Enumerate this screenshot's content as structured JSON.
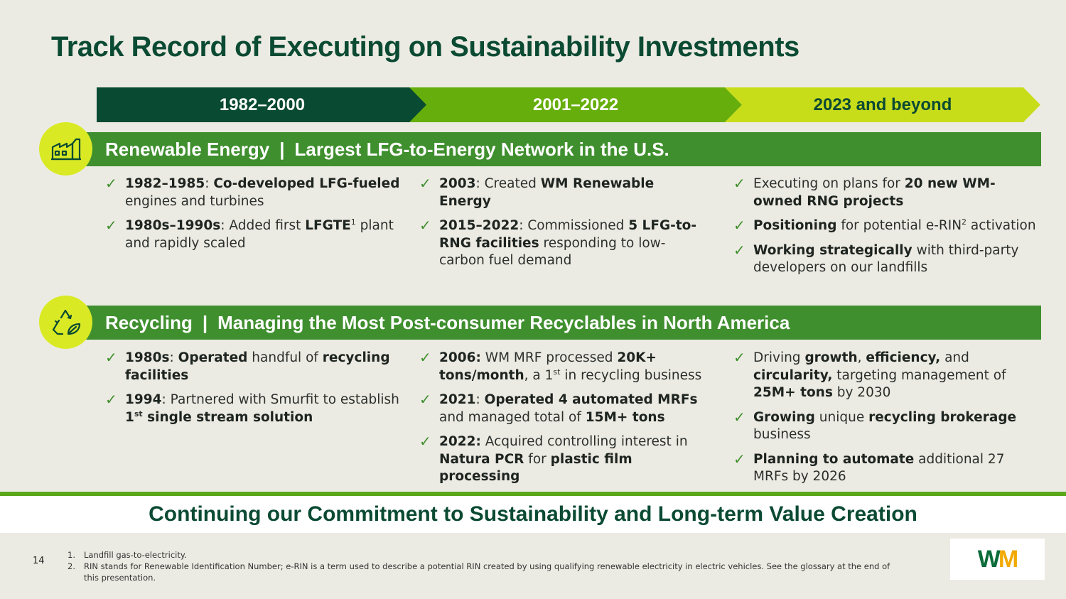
{
  "title": "Track Record of Executing on Sustainability Investments",
  "timeline": [
    "1982–2000",
    "2001–2022",
    "2023 and beyond"
  ],
  "sections": [
    {
      "icon": "factory-icon",
      "label": "Renewable Energy",
      "separator": "|",
      "heading": "Largest LFG-to-Energy Network in the U.S."
    },
    {
      "icon": "recycle-icon",
      "label": "Recycling",
      "separator": "|",
      "heading": "Managing the Most Post-consumer Recyclables in North America"
    }
  ],
  "renewable": {
    "col1": {
      "i1": {
        "b1": "1982–1985",
        "t1": ": ",
        "b2": "Co-developed LFG-fueled",
        "t2": " engines and turbines"
      },
      "i2": {
        "b1": "1980s–1990s",
        "t1": ": Added first ",
        "b2": "LFGTE",
        "sup": "1",
        "t2": " plant and rapidly scaled"
      }
    },
    "col2": {
      "i1": {
        "b1": "2003",
        "t1": ": Created ",
        "b2": "WM Renewable Energy"
      },
      "i2": {
        "b1": "2015–2022",
        "t1": ": Commissioned ",
        "b2": "5 LFG-to-RNG facilities",
        "t2": " responding to low-carbon fuel demand"
      }
    },
    "col3": {
      "i1": {
        "t1": "Executing on plans for ",
        "b1": "20 new WM-owned RNG projects"
      },
      "i2": {
        "b1": "Positioning",
        "t1": " for potential e-RIN",
        "sup": "2",
        "t2": " activation"
      },
      "i3": {
        "b1": "Working strategically",
        "t1": " with third-party developers on our landfills"
      }
    }
  },
  "recycling": {
    "col1": {
      "i1": {
        "b1": "1980s",
        "t1": ": ",
        "b2": "Operated",
        "t2": " handful of ",
        "b3": "recycling facilities"
      },
      "i2": {
        "b1": "1994",
        "t1": ": Partnered with Smurfit to establish ",
        "b2": "1",
        "sup": "st",
        "b3": " single stream solution"
      }
    },
    "col2": {
      "i1": {
        "b1": "2006:",
        "t1": " WM MRF processed ",
        "b2": "20K+ tons/month",
        "t2": ", a 1",
        "sup": "st",
        "t3": " in recycling business"
      },
      "i2": {
        "b1": "2021",
        "t1": ": ",
        "b2": "Operated 4 automated MRFs",
        "t2": " and managed total of ",
        "b3": "15M+ tons"
      },
      "i3": {
        "b1": "2022:",
        "t1": " Acquired controlling interest in ",
        "b2": "Natura PCR",
        "t2": " for ",
        "b3": "plastic film processing"
      }
    },
    "col3": {
      "i1": {
        "t1": "Driving ",
        "b1": "growth",
        "t2": ", ",
        "b2": "efficiency,",
        "t3": " and ",
        "b3": "circularity,",
        "t4": " targeting management of ",
        "b4": "25M+ tons",
        "t5": " by 2030"
      },
      "i2": {
        "b1": "Growing",
        "t1": " unique ",
        "b2": "recycling brokerage",
        "t2": " business"
      },
      "i3": {
        "b1": "Planning to automate",
        "t1": " additional 27 MRFs by 2026"
      }
    }
  },
  "check": "✓",
  "banner": "Continuing our Commitment to Sustainability and Long-term Value Creation",
  "page_number": "14",
  "footnotes": [
    {
      "n": "1.",
      "text": "Landfill gas-to-electricity."
    },
    {
      "n": "2.",
      "text": "RIN stands for Renewable Identification Number; e-RIN is a term used to describe a potential RIN created by using qualifying renewable electricity in electric vehicles. See the glossary at the end of this presentation."
    }
  ],
  "logo": {
    "w": "W",
    "m": "M"
  },
  "colors": {
    "dark_green": "#084a32",
    "mid_green": "#66ae0b",
    "lime": "#c8dd1a",
    "bar_green": "#3f8f2e",
    "circle": "#d9ea24"
  }
}
